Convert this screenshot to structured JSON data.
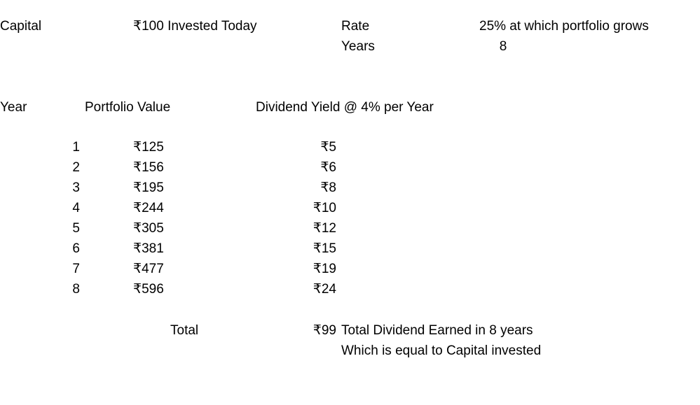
{
  "header": {
    "capital_label": "Capital",
    "capital_value": "₹100 Invested Today",
    "rate_label": "Rate",
    "rate_value": "25% at which portfolio grows",
    "years_label": "Years",
    "years_value": "8"
  },
  "table": {
    "columns": [
      "Year",
      "Portfolio Value",
      "Dividend Yield @ 4% per Year"
    ],
    "rows": [
      {
        "year": "1",
        "portfolio": "₹125",
        "dividend": "₹5"
      },
      {
        "year": "2",
        "portfolio": "₹156",
        "dividend": "₹6"
      },
      {
        "year": "3",
        "portfolio": "₹195",
        "dividend": "₹8"
      },
      {
        "year": "4",
        "portfolio": "₹244",
        "dividend": "₹10"
      },
      {
        "year": "5",
        "portfolio": "₹305",
        "dividend": "₹12"
      },
      {
        "year": "6",
        "portfolio": "₹381",
        "dividend": "₹15"
      },
      {
        "year": "7",
        "portfolio": "₹477",
        "dividend": "₹19"
      },
      {
        "year": "8",
        "portfolio": "₹596",
        "dividend": "₹24"
      }
    ]
  },
  "footer": {
    "total_label": "Total",
    "total_value": "₹99",
    "note_line1": "Total Dividend Earned in 8 years",
    "note_line2": "Which is equal to Capital invested"
  }
}
